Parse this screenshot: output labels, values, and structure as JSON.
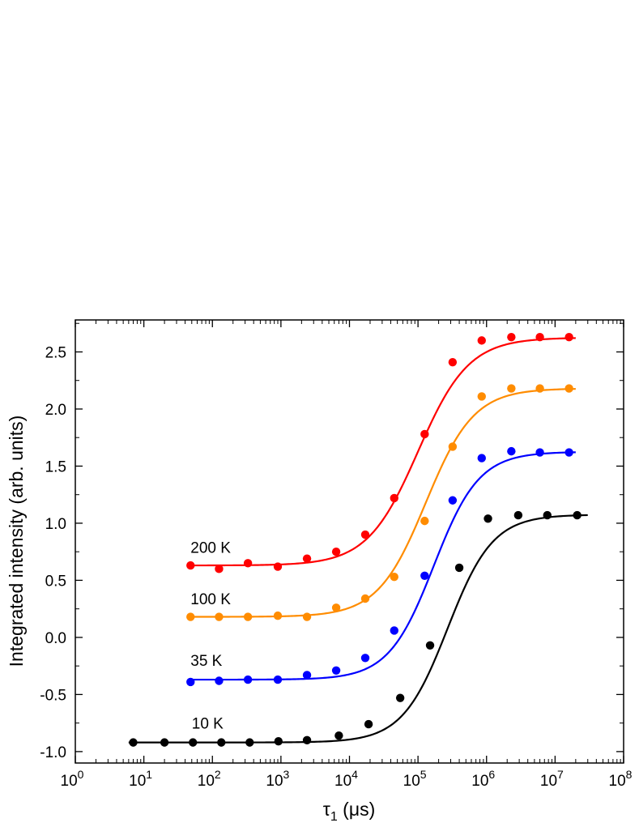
{
  "chart_data": {
    "type": "scatter",
    "xlabel_main": "τ",
    "xlabel_sub": "1",
    "xlabel_unit": " (μs)",
    "ylabel": "Integrated intensity (arb. units)",
    "xscale": "log",
    "xlim": [
      1,
      100000000
    ],
    "ylim": [
      -1.1,
      2.78
    ],
    "x_ticks": [
      {
        "value": 1,
        "base": "10",
        "exp": "0"
      },
      {
        "value": 10,
        "base": "10",
        "exp": "1"
      },
      {
        "value": 100,
        "base": "10",
        "exp": "2"
      },
      {
        "value": 1000,
        "base": "10",
        "exp": "3"
      },
      {
        "value": 10000,
        "base": "10",
        "exp": "4"
      },
      {
        "value": 100000,
        "base": "10",
        "exp": "5"
      },
      {
        "value": 1000000,
        "base": "10",
        "exp": "6"
      },
      {
        "value": 10000000,
        "base": "10",
        "exp": "7"
      },
      {
        "value": 100000000,
        "base": "10",
        "exp": "8"
      }
    ],
    "y_ticks": [
      {
        "value": -1.0,
        "label": "-1.0"
      },
      {
        "value": -0.5,
        "label": "-0.5"
      },
      {
        "value": 0.0,
        "label": "0.0"
      },
      {
        "value": 0.5,
        "label": "0.5"
      },
      {
        "value": 1.0,
        "label": "1.0"
      },
      {
        "value": 1.5,
        "label": "1.5"
      },
      {
        "value": 2.0,
        "label": "2.0"
      },
      {
        "value": 2.5,
        "label": "2.5"
      }
    ],
    "grid": false,
    "legend": "none",
    "series": [
      {
        "name": "10 K",
        "color": "#000000",
        "label_anchor": [
          50,
          -0.8
        ],
        "points": [
          [
            7,
            -0.92
          ],
          [
            20,
            -0.92
          ],
          [
            52,
            -0.92
          ],
          [
            135,
            -0.92
          ],
          [
            350,
            -0.92
          ],
          [
            920,
            -0.91
          ],
          [
            2400,
            -0.9
          ],
          [
            7000,
            -0.86
          ],
          [
            19000,
            -0.76
          ],
          [
            55000,
            -0.53
          ],
          [
            150000,
            -0.07
          ],
          [
            400000,
            0.61
          ],
          [
            1050000,
            1.04
          ],
          [
            2900000,
            1.07
          ],
          [
            7700000,
            1.07
          ],
          [
            21000000,
            1.07
          ]
        ],
        "fit": {
          "low": -0.92,
          "high": 1.075,
          "center": 270000,
          "width": 0.33,
          "xmin": 6,
          "xmax": 30000000
        }
      },
      {
        "name": "35 K",
        "color": "#0000ff",
        "label_anchor": [
          48,
          -0.25
        ],
        "points": [
          [
            48,
            -0.39
          ],
          [
            125,
            -0.38
          ],
          [
            330,
            -0.37
          ],
          [
            900,
            -0.37
          ],
          [
            2400,
            -0.33
          ],
          [
            6400,
            -0.29
          ],
          [
            17000,
            -0.18
          ],
          [
            45000,
            0.06
          ],
          [
            125000,
            0.54
          ],
          [
            320000,
            1.2
          ],
          [
            850000,
            1.57
          ],
          [
            2300000,
            1.63
          ],
          [
            6000000,
            1.62
          ],
          [
            16000000,
            1.62
          ]
        ],
        "fit": {
          "low": -0.37,
          "high": 1.625,
          "center": 170000,
          "width": 0.33,
          "xmin": 45,
          "xmax": 20000000
        }
      },
      {
        "name": "100 K",
        "color": "#ff8c00",
        "label_anchor": [
          48,
          0.29
        ],
        "points": [
          [
            48,
            0.18
          ],
          [
            125,
            0.18
          ],
          [
            330,
            0.18
          ],
          [
            900,
            0.19
          ],
          [
            2400,
            0.18
          ],
          [
            6400,
            0.26
          ],
          [
            17000,
            0.34
          ],
          [
            45000,
            0.53
          ],
          [
            125000,
            1.02
          ],
          [
            320000,
            1.67
          ],
          [
            850000,
            2.11
          ],
          [
            2300000,
            2.18
          ],
          [
            6000000,
            2.18
          ],
          [
            16000000,
            2.18
          ]
        ],
        "fit": {
          "low": 0.18,
          "high": 2.18,
          "center": 130000,
          "width": 0.35,
          "xmin": 45,
          "xmax": 20000000
        }
      },
      {
        "name": "200 K",
        "color": "#ff0000",
        "label_anchor": [
          48,
          0.74
        ],
        "points": [
          [
            48,
            0.63
          ],
          [
            125,
            0.6
          ],
          [
            330,
            0.65
          ],
          [
            900,
            0.62
          ],
          [
            2400,
            0.69
          ],
          [
            6400,
            0.75
          ],
          [
            17000,
            0.9
          ],
          [
            45000,
            1.22
          ],
          [
            125000,
            1.78
          ],
          [
            320000,
            2.41
          ],
          [
            850000,
            2.6
          ],
          [
            2300000,
            2.63
          ],
          [
            6000000,
            2.63
          ],
          [
            16000000,
            2.63
          ]
        ],
        "fit": {
          "low": 0.63,
          "high": 2.625,
          "center": 100000,
          "width": 0.37,
          "xmin": 45,
          "xmax": 20000000
        }
      }
    ]
  }
}
